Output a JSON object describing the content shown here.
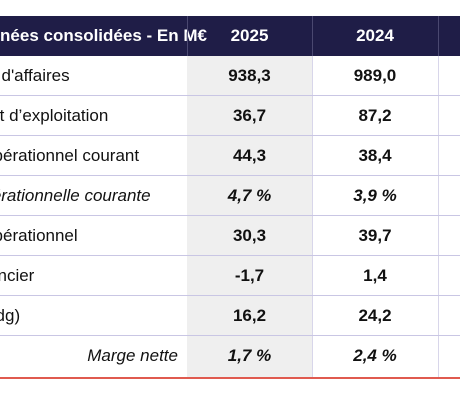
{
  "header": {
    "label": "Données consolidées - En M€",
    "col1": "2025",
    "col2": "2024"
  },
  "rows": [
    {
      "label": "Chiffre d'affaires",
      "v2025": "938,3",
      "v2024": "989,0"
    },
    {
      "label": "Résultat d’exploitation",
      "v2025": "36,7",
      "v2024": "87,2"
    },
    {
      "label": "Résultat opérationnel courant",
      "v2025": "44,3",
      "v2024": "38,4"
    },
    {
      "label": "Marge opérationnelle courante",
      "v2025": "4,7 %",
      "v2024": "3,9 %"
    },
    {
      "label": "Résultat opérationnel",
      "v2025": "30,3",
      "v2024": "39,7"
    },
    {
      "label": "Résultat financier",
      "v2025": "-1,7",
      "v2024": "1,4"
    },
    {
      "label": "Résultat net (pdg)",
      "v2025": "16,2",
      "v2024": "24,2"
    },
    {
      "label": "Marge nette",
      "v2025": "1,7 %",
      "v2024": "2,4 %"
    }
  ],
  "colors": {
    "header_bg": "#1f1d47",
    "row_divider": "#c9c6e4",
    "shaded_column": "#efefef",
    "bottom_rule": "#e05a4f"
  }
}
